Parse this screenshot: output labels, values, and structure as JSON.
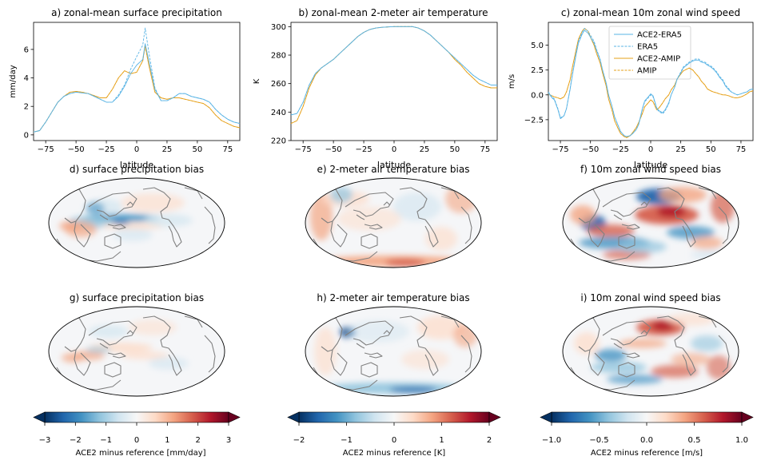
{
  "line_panels": [
    {
      "title": "a) zonal-mean surface precipitation",
      "xlabel": "latitude",
      "ylabel": "mm/day",
      "xticks": [
        "−75",
        "−50",
        "−25",
        "0",
        "25",
        "50",
        "75"
      ],
      "yticks": [
        "0",
        "2",
        "4",
        "6"
      ]
    },
    {
      "title": "b) zonal-mean 2-meter air temperature",
      "xlabel": "latitude",
      "ylabel": "K",
      "xticks": [
        "−75",
        "−50",
        "−25",
        "0",
        "25",
        "50",
        "75"
      ],
      "yticks": [
        "220",
        "240",
        "260",
        "280",
        "300"
      ]
    },
    {
      "title": "c) zonal-mean 10m zonal wind speed",
      "xlabel": "latitude",
      "ylabel": "m/s",
      "xticks": [
        "−75",
        "−50",
        "−25",
        "0",
        "25",
        "50",
        "75"
      ],
      "yticks": [
        "−2.5",
        "0.0",
        "2.5",
        "5.0"
      ]
    }
  ],
  "legend": [
    "ACE2-ERA5",
    "ERA5",
    "ACE2-AMIP",
    "AMIP"
  ],
  "map_titles": [
    "d) surface precipitation bias",
    "e) 2-meter air temperature bias",
    "f) 10m zonal wind speed bias",
    "g) surface precipitation bias",
    "h) 2-meter air temperature bias",
    "i) 10m zonal wind speed bias"
  ],
  "colorbars": [
    {
      "label": "ACE2 minus reference [mm/day]",
      "ticks": [
        "−3",
        "−2",
        "−1",
        "0",
        "1",
        "2",
        "3"
      ]
    },
    {
      "label": "ACE2 minus reference [K]",
      "ticks": [
        "−2",
        "−1",
        "0",
        "1",
        "2"
      ]
    },
    {
      "label": "ACE2 minus reference [m/s]",
      "ticks": [
        "−1.0",
        "−0.5",
        "0.0",
        "0.5",
        "1.0"
      ]
    }
  ],
  "colors": {
    "ace2_era5": "#5ab4e5",
    "era5": "#5ab4e5",
    "ace2_amip": "#e6a11a",
    "amip": "#e6a11a",
    "cmap": "RdBu_r"
  },
  "chart_data": [
    {
      "type": "line",
      "title": "a) zonal-mean surface precipitation",
      "xlabel": "latitude",
      "ylabel": "mm/day",
      "xlim": [
        -85,
        85
      ],
      "ylim": [
        -0.4,
        7.9
      ],
      "x": [
        -85,
        -80,
        -75,
        -70,
        -65,
        -60,
        -55,
        -50,
        -45,
        -40,
        -35,
        -30,
        -25,
        -20,
        -15,
        -10,
        -5,
        0,
        5,
        7,
        10,
        15,
        20,
        25,
        30,
        35,
        40,
        45,
        50,
        55,
        60,
        65,
        70,
        75,
        80,
        85
      ],
      "series": [
        {
          "name": "ACE2-ERA5",
          "values": [
            0.2,
            0.3,
            0.9,
            1.6,
            2.3,
            2.7,
            2.9,
            3.0,
            2.95,
            2.9,
            2.7,
            2.5,
            2.3,
            2.3,
            2.7,
            3.4,
            4.3,
            4.9,
            5.3,
            6.4,
            5.2,
            3.2,
            2.4,
            2.4,
            2.6,
            2.9,
            2.9,
            2.7,
            2.6,
            2.5,
            2.3,
            1.8,
            1.4,
            1.1,
            0.9,
            0.8
          ]
        },
        {
          "name": "ERA5",
          "values": [
            0.2,
            0.3,
            0.9,
            1.6,
            2.3,
            2.7,
            2.9,
            3.0,
            2.95,
            2.9,
            2.7,
            2.5,
            2.3,
            2.3,
            2.8,
            3.5,
            4.6,
            5.5,
            6.3,
            7.5,
            5.8,
            3.3,
            2.4,
            2.4,
            2.6,
            2.9,
            2.9,
            2.7,
            2.6,
            2.5,
            2.3,
            1.8,
            1.4,
            1.1,
            0.9,
            0.8
          ]
        },
        {
          "name": "ACE2-AMIP",
          "values": [
            0.2,
            0.3,
            0.9,
            1.6,
            2.3,
            2.7,
            3.0,
            3.05,
            3.0,
            2.9,
            2.75,
            2.6,
            2.6,
            3.2,
            4.0,
            4.5,
            4.3,
            4.4,
            5.2,
            6.3,
            4.9,
            3.0,
            2.6,
            2.5,
            2.6,
            2.6,
            2.5,
            2.4,
            2.3,
            2.2,
            1.9,
            1.4,
            1.0,
            0.8,
            0.6,
            0.5
          ]
        },
        {
          "name": "AMIP",
          "values": [
            0.2,
            0.3,
            0.9,
            1.6,
            2.3,
            2.7,
            3.0,
            3.05,
            3.0,
            2.9,
            2.75,
            2.6,
            2.6,
            3.2,
            4.0,
            4.5,
            4.3,
            4.4,
            5.2,
            6.2,
            4.9,
            3.0,
            2.6,
            2.5,
            2.6,
            2.6,
            2.5,
            2.4,
            2.3,
            2.2,
            1.9,
            1.4,
            1.0,
            0.8,
            0.6,
            0.5
          ]
        }
      ]
    },
    {
      "type": "line",
      "title": "b) zonal-mean 2-meter air temperature",
      "xlabel": "latitude",
      "ylabel": "K",
      "xlim": [
        -85,
        85
      ],
      "ylim": [
        220,
        303
      ],
      "x": [
        -85,
        -80,
        -75,
        -70,
        -65,
        -60,
        -55,
        -50,
        -45,
        -40,
        -35,
        -30,
        -25,
        -20,
        -15,
        -10,
        -5,
        0,
        5,
        10,
        15,
        20,
        25,
        30,
        35,
        40,
        45,
        50,
        55,
        60,
        65,
        70,
        75,
        80,
        85
      ],
      "series": [
        {
          "name": "ACE2-ERA5",
          "values": [
            238,
            239,
            247,
            259,
            267,
            271,
            274,
            277,
            281,
            285,
            289,
            293,
            296,
            298,
            299,
            299.5,
            299.8,
            300,
            300,
            300,
            300,
            299,
            297,
            294,
            290,
            286,
            282,
            278,
            274,
            270,
            266,
            263,
            261,
            259,
            259
          ]
        },
        {
          "name": "ERA5",
          "values": [
            238,
            239,
            247,
            259,
            267,
            271,
            274,
            277,
            281,
            285,
            289,
            293,
            296,
            298,
            299,
            299.5,
            299.8,
            300,
            300,
            300,
            300,
            299,
            297,
            294,
            290,
            286,
            282,
            278,
            274,
            270,
            266,
            263,
            261,
            259,
            259
          ]
        },
        {
          "name": "ACE2-AMIP",
          "values": [
            232,
            234,
            244,
            257,
            266,
            271,
            274,
            277,
            281,
            285,
            289,
            293,
            296,
            298,
            299,
            299.5,
            299.8,
            300,
            300,
            300,
            300,
            299,
            297,
            294,
            290,
            286,
            282,
            277,
            273,
            268,
            264,
            260,
            258,
            257,
            257
          ]
        },
        {
          "name": "AMIP",
          "values": [
            232,
            234,
            244,
            257,
            266,
            271,
            274,
            277,
            281,
            285,
            289,
            293,
            296,
            298,
            299,
            299.5,
            299.8,
            300,
            300,
            300,
            300,
            299,
            297,
            294,
            290,
            286,
            282,
            277,
            273,
            268,
            264,
            260,
            258,
            257,
            257
          ]
        }
      ]
    },
    {
      "type": "line",
      "title": "c) zonal-mean 10m zonal wind speed",
      "xlabel": "latitude",
      "ylabel": "m/s",
      "xlim": [
        -85,
        85
      ],
      "ylim": [
        -4.6,
        7.3
      ],
      "legend_loc": "upper right",
      "x": [
        -85,
        -82,
        -80,
        -77,
        -75,
        -72,
        -70,
        -67,
        -65,
        -62,
        -60,
        -57,
        -55,
        -52,
        -50,
        -47,
        -45,
        -42,
        -40,
        -37,
        -35,
        -32,
        -30,
        -27,
        -25,
        -22,
        -20,
        -17,
        -15,
        -12,
        -10,
        -7,
        -5,
        -2,
        0,
        2,
        5,
        7,
        10,
        12,
        15,
        17,
        20,
        22,
        25,
        27,
        30,
        32,
        35,
        37,
        40,
        42,
        45,
        47,
        50,
        52,
        55,
        57,
        60,
        62,
        65,
        67,
        70,
        72,
        75,
        77,
        80,
        82,
        85
      ],
      "series": [
        {
          "name": "ACE2-ERA5",
          "values": [
            0.2,
            -0.3,
            -0.5,
            -1.5,
            -2.4,
            -2.1,
            -1.4,
            0.5,
            2.0,
            4.0,
            5.2,
            6.1,
            6.5,
            6.2,
            5.8,
            5.2,
            4.5,
            3.5,
            2.5,
            1.2,
            0,
            -1.2,
            -2.2,
            -3.1,
            -3.7,
            -4.1,
            -4.2,
            -4.1,
            -3.9,
            -3.5,
            -3.0,
            -1.4,
            -0.6,
            -0.2,
            0.1,
            -0.1,
            -1.3,
            -1.6,
            -1.8,
            -1.5,
            -0.8,
            0,
            0.8,
            1.6,
            2.2,
            2.7,
            3.0,
            3.2,
            3.4,
            3.5,
            3.5,
            3.3,
            3.2,
            3.0,
            2.8,
            2.6,
            2.2,
            1.8,
            1.4,
            0.9,
            0.5,
            0.3,
            0.1,
            0,
            0.1,
            0.2,
            0.3,
            0.5,
            0.6
          ]
        },
        {
          "name": "ERA5",
          "values": [
            0.3,
            -0.2,
            -0.4,
            -1.4,
            -2.3,
            -2.1,
            -1.4,
            0.6,
            2.1,
            4.2,
            5.4,
            6.3,
            6.7,
            6.4,
            6.0,
            5.4,
            4.6,
            3.6,
            2.5,
            1.2,
            0,
            -1.2,
            -2.2,
            -3.1,
            -3.7,
            -4.1,
            -4.2,
            -4.1,
            -3.9,
            -3.5,
            -3.0,
            -1.5,
            -0.7,
            -0.3,
            0.0,
            -0.2,
            -1.4,
            -1.7,
            -1.9,
            -1.6,
            -0.9,
            0,
            0.8,
            1.6,
            2.3,
            2.8,
            3.1,
            3.3,
            3.5,
            3.6,
            3.6,
            3.4,
            3.3,
            3.1,
            2.9,
            2.7,
            2.3,
            1.9,
            1.5,
            1.0,
            0.6,
            0.3,
            0.1,
            0,
            0.1,
            0.2,
            0.3,
            0.5,
            0.6
          ]
        },
        {
          "name": "ACE2-AMIP",
          "values": [
            0.1,
            -0.1,
            -0.2,
            -0.3,
            -0.4,
            -0.2,
            0.3,
            1.5,
            2.8,
            4.5,
            5.6,
            6.4,
            6.7,
            6.4,
            5.8,
            5.0,
            4.2,
            3.2,
            2.2,
            0.9,
            -0.4,
            -1.6,
            -2.6,
            -3.4,
            -3.9,
            -4.2,
            -4.3,
            -4.1,
            -3.8,
            -3.3,
            -2.8,
            -1.9,
            -1.2,
            -0.8,
            -0.5,
            -0.7,
            -1.5,
            -1.3,
            -0.8,
            -0.4,
            0,
            0.5,
            1.0,
            1.6,
            2.1,
            2.4,
            2.6,
            2.7,
            2.5,
            2.2,
            1.8,
            1.4,
            1.0,
            0.6,
            0.4,
            0.3,
            0.2,
            0.1,
            0.0,
            0.0,
            -0.1,
            -0.2,
            -0.3,
            -0.3,
            -0.2,
            -0.1,
            0.1,
            0.3,
            0.4
          ]
        },
        {
          "name": "AMIP",
          "values": [
            0.1,
            -0.1,
            -0.2,
            -0.3,
            -0.4,
            -0.2,
            0.3,
            1.5,
            2.8,
            4.5,
            5.6,
            6.4,
            6.7,
            6.4,
            5.8,
            5.0,
            4.2,
            3.2,
            2.2,
            0.9,
            -0.4,
            -1.6,
            -2.6,
            -3.4,
            -3.9,
            -4.2,
            -4.3,
            -4.1,
            -3.8,
            -3.3,
            -2.8,
            -1.9,
            -1.2,
            -0.8,
            -0.5,
            -0.7,
            -1.5,
            -1.3,
            -0.8,
            -0.4,
            0,
            0.5,
            1.0,
            1.6,
            2.1,
            2.4,
            2.6,
            2.7,
            2.5,
            2.2,
            1.8,
            1.4,
            1.0,
            0.6,
            0.4,
            0.3,
            0.2,
            0.1,
            0.0,
            0.0,
            -0.1,
            -0.2,
            -0.3,
            -0.3,
            -0.2,
            -0.1,
            0.1,
            0.3,
            0.4
          ]
        }
      ]
    }
  ]
}
